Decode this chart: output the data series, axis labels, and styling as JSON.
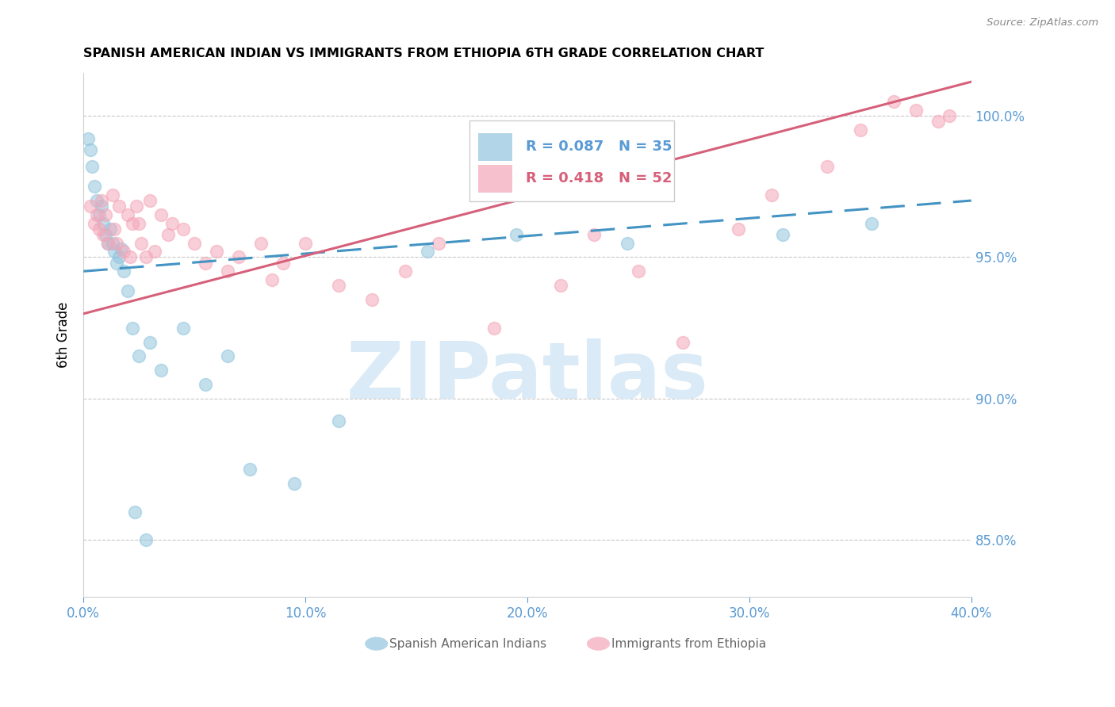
{
  "title": "SPANISH AMERICAN INDIAN VS IMMIGRANTS FROM ETHIOPIA 6TH GRADE CORRELATION CHART",
  "source": "Source: ZipAtlas.com",
  "ylabel": "6th Grade",
  "yaxis_ticks": [
    85.0,
    90.0,
    95.0,
    100.0
  ],
  "xaxis_ticks": [
    0.0,
    10.0,
    20.0,
    30.0,
    40.0
  ],
  "xaxis_labels": [
    "0.0%",
    "10.0%",
    "20.0%",
    "30.0%",
    "40.0%"
  ],
  "blue_R": 0.087,
  "blue_N": 35,
  "pink_R": 0.418,
  "pink_N": 52,
  "blue_color": "#92c5de",
  "pink_color": "#f4a6b8",
  "blue_line_color": "#4393c3",
  "pink_line_color": "#d6607a",
  "axis_color": "#5b9bd5",
  "watermark_color": "#daeaf6",
  "legend_blue_text_color": "#5b9bd5",
  "legend_pink_text_color": "#d6607a",
  "xlim": [
    0,
    40
  ],
  "ylim": [
    83.0,
    101.5
  ],
  "blue_x": [
    0.2,
    0.3,
    0.4,
    0.5,
    0.6,
    0.7,
    0.8,
    0.9,
    1.0,
    1.1,
    1.2,
    1.3,
    1.4,
    1.5,
    1.6,
    1.7,
    1.8,
    2.0,
    2.2,
    2.5,
    3.0,
    3.5,
    4.5,
    5.5,
    6.5,
    7.5,
    9.5,
    11.5,
    15.5,
    19.5,
    24.5,
    31.5,
    35.5,
    2.3,
    2.8
  ],
  "blue_y": [
    99.2,
    98.8,
    98.2,
    97.5,
    97.0,
    96.5,
    96.8,
    96.2,
    95.8,
    95.5,
    96.0,
    95.5,
    95.2,
    94.8,
    95.0,
    95.3,
    94.5,
    93.8,
    92.5,
    91.5,
    92.0,
    91.0,
    92.5,
    90.5,
    91.5,
    87.5,
    87.0,
    89.2,
    95.2,
    95.8,
    95.5,
    95.8,
    96.2,
    86.0,
    85.0
  ],
  "pink_x": [
    0.3,
    0.5,
    0.6,
    0.7,
    0.8,
    0.9,
    1.0,
    1.1,
    1.3,
    1.4,
    1.5,
    1.6,
    1.8,
    2.0,
    2.1,
    2.2,
    2.4,
    2.6,
    2.8,
    3.0,
    3.2,
    3.5,
    3.8,
    4.0,
    4.5,
    5.0,
    5.5,
    6.0,
    6.5,
    7.0,
    8.0,
    8.5,
    9.0,
    10.0,
    11.5,
    13.0,
    14.5,
    16.0,
    18.5,
    21.5,
    23.0,
    25.0,
    27.0,
    29.5,
    31.0,
    33.5,
    35.0,
    36.5,
    37.5,
    38.5,
    39.0,
    2.5
  ],
  "pink_y": [
    96.8,
    96.2,
    96.5,
    96.0,
    97.0,
    95.8,
    96.5,
    95.5,
    97.2,
    96.0,
    95.5,
    96.8,
    95.2,
    96.5,
    95.0,
    96.2,
    96.8,
    95.5,
    95.0,
    97.0,
    95.2,
    96.5,
    95.8,
    96.2,
    96.0,
    95.5,
    94.8,
    95.2,
    94.5,
    95.0,
    95.5,
    94.2,
    94.8,
    95.5,
    94.0,
    93.5,
    94.5,
    95.5,
    92.5,
    94.0,
    95.8,
    94.5,
    92.0,
    96.0,
    97.2,
    98.2,
    99.5,
    100.5,
    100.2,
    99.8,
    100.0,
    96.2
  ]
}
